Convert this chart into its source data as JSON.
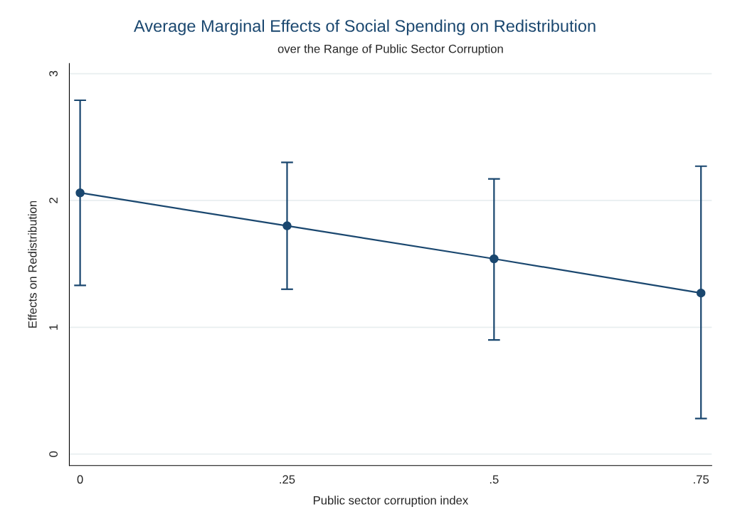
{
  "chart_data": {
    "type": "line",
    "title": "Average Marginal Effects of Social Spending on Redistribution",
    "subtitle": "over the Range of Public Sector Corruption",
    "xlabel": "Public sector corruption index",
    "ylabel": "Effects on Redistribution",
    "x": [
      0,
      0.25,
      0.5,
      0.75
    ],
    "series": [
      {
        "color": "#1a476f",
        "values": [
          2.06,
          1.8,
          1.54,
          1.27
        ],
        "errors": [
          [
            1.33,
            2.79
          ],
          [
            1.3,
            2.3
          ],
          [
            0.9,
            2.17
          ],
          [
            0.28,
            2.27
          ]
        ]
      }
    ],
    "xlim": [
      -0.013,
      0.763
    ],
    "xticks": [
      0,
      {
        "value": 0.25,
        "label": ".25"
      },
      {
        "value": 0.5,
        "label": ".5"
      },
      {
        "value": 0.75,
        "label": ".75"
      }
    ],
    "ylim": [
      -0.09,
      3.08
    ],
    "yticks": [
      0,
      1,
      2,
      3
    ],
    "grid": "y",
    "marker": "circle",
    "line_style": "solid"
  }
}
